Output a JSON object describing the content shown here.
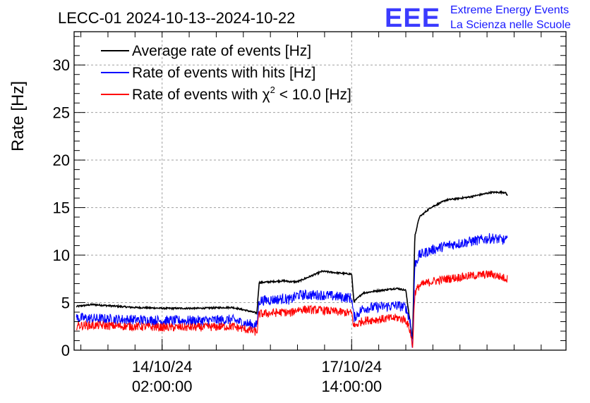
{
  "chart_data": {
    "type": "line",
    "title": "LECC-01 2024-10-13--2024-10-22",
    "ylabel": "Rate [Hz]",
    "xlabel": "",
    "ylim": [
      0,
      33.5
    ],
    "yticks": [
      0,
      5,
      10,
      15,
      20,
      25,
      30
    ],
    "xlim_hours": [
      0,
      218
    ],
    "xticks": [
      {
        "hours": 39,
        "line1": "14/10/24",
        "line2": "02:00:00"
      },
      {
        "hours": 123,
        "line1": "17/10/24",
        "line2": "14:00:00"
      }
    ],
    "grid": true,
    "legend": {
      "placement": "top-left",
      "entries": [
        {
          "label": "Average rate of events [Hz]",
          "color": "#000000"
        },
        {
          "label": "Rate of events with hits [Hz]",
          "color": "#0000ff"
        },
        {
          "label": "Rate of events with",
          "chi_label": "χ",
          "sup": "2",
          "tail": " < 10.0 [Hz]",
          "color": "#ff0000"
        }
      ]
    },
    "logo": {
      "mark": "EEE",
      "line1": "Extreme Energy Events",
      "line2": "La Scienza nelle Scuole",
      "color": "#1a1aff"
    },
    "series": [
      {
        "name": "Average rate of events [Hz]",
        "color": "#000000",
        "noise": 0.08,
        "x": [
          1,
          8,
          26,
          40,
          55,
          70,
          76,
          81,
          82,
          93,
          96,
          99,
          110,
          118,
          123,
          124,
          128,
          133,
          143,
          147,
          150,
          151,
          153,
          158,
          165,
          175,
          185,
          191,
          192
        ],
        "y": [
          4.6,
          4.8,
          4.5,
          4.4,
          4.4,
          4.5,
          4.2,
          3.9,
          7.1,
          7.3,
          7.2,
          7.2,
          8.3,
          8.1,
          8.0,
          5.1,
          6.0,
          6.2,
          6.5,
          6.3,
          1.0,
          12.0,
          14.0,
          15.0,
          15.8,
          16.1,
          16.6,
          16.6,
          16.3
        ]
      },
      {
        "name": "Rate of events with hits [Hz]",
        "color": "#0000ff",
        "noise": 0.55,
        "x": [
          1,
          10,
          26,
          40,
          55,
          70,
          76,
          81,
          82,
          93,
          96,
          99,
          110,
          118,
          123,
          124,
          128,
          133,
          143,
          147,
          149,
          150,
          151,
          153,
          158,
          165,
          175,
          185,
          192
        ],
        "y": [
          3.4,
          3.3,
          3.2,
          3.1,
          3.1,
          3.2,
          2.8,
          2.6,
          5.2,
          5.4,
          5.3,
          5.8,
          5.8,
          5.6,
          5.5,
          3.4,
          4.4,
          4.5,
          4.7,
          4.5,
          3.0,
          0.3,
          9.0,
          10.0,
          10.5,
          11.0,
          11.4,
          11.8,
          11.5
        ]
      },
      {
        "name": "Rate of events with chi2 < 10.0 [Hz]",
        "color": "#ff0000",
        "noise": 0.45,
        "x": [
          1,
          10,
          26,
          40,
          55,
          70,
          76,
          81,
          82,
          93,
          96,
          99,
          110,
          118,
          123,
          124,
          128,
          133,
          143,
          147,
          149,
          150,
          151,
          153,
          158,
          165,
          175,
          185,
          192
        ],
        "y": [
          2.6,
          2.6,
          2.5,
          2.4,
          2.4,
          2.5,
          2.2,
          1.9,
          3.8,
          4.0,
          3.9,
          4.3,
          4.2,
          4.0,
          3.9,
          2.5,
          3.1,
          3.2,
          3.4,
          3.2,
          2.0,
          0.2,
          6.0,
          6.8,
          7.2,
          7.5,
          7.8,
          8.0,
          7.5
        ]
      }
    ]
  }
}
